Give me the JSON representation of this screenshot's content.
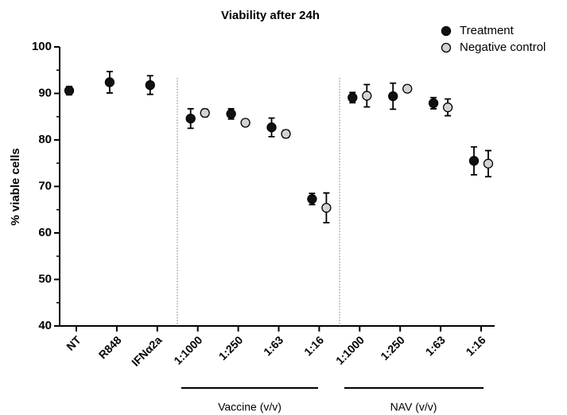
{
  "chart_data": {
    "type": "scatter",
    "title": "Viability after 24h",
    "y_label": "% viable cells",
    "categories": [
      "NT",
      "R848",
      "IFNα2a",
      "1:1000",
      "1:250",
      "1:63",
      "1:16",
      "1:1000",
      "1:250",
      "1:63",
      "1:16"
    ],
    "group_labels": [
      "Vaccine (v/v)",
      "NAV (v/v)"
    ],
    "series": [
      {
        "name": "Treatment",
        "color": "#111111",
        "values": [
          90.6,
          92.4,
          91.8,
          84.6,
          85.6,
          82.7,
          67.3,
          89.1,
          89.4,
          87.9,
          75.5
        ],
        "errors": [
          0.9,
          2.3,
          2.0,
          2.1,
          1.1,
          2.0,
          1.2,
          1.1,
          2.8,
          1.2,
          3.0
        ]
      },
      {
        "name": "Negative control",
        "color": "#d3d3d3",
        "values": [
          null,
          null,
          null,
          85.8,
          83.7,
          81.3,
          65.4,
          89.5,
          91.0,
          87.0,
          74.9
        ],
        "errors": [
          null,
          null,
          null,
          0.8,
          0.5,
          0.8,
          3.2,
          2.4,
          0.5,
          1.8,
          2.8
        ]
      }
    ],
    "ylim": [
      40,
      100
    ],
    "yticks": [
      40,
      50,
      60,
      70,
      80,
      90,
      100
    ]
  }
}
